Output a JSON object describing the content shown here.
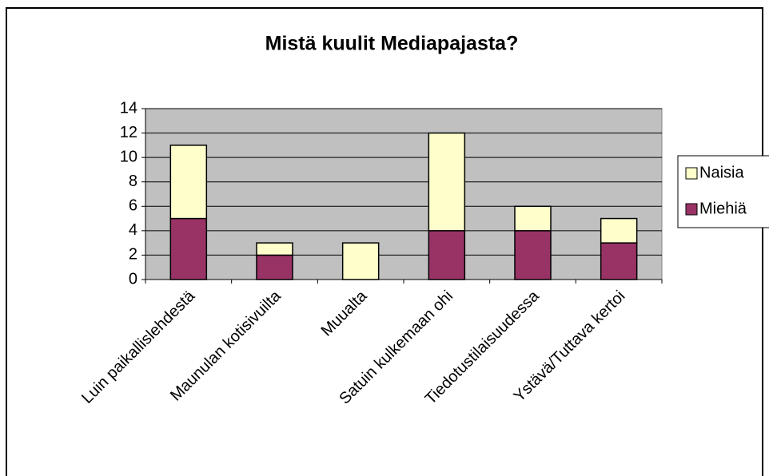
{
  "chart_data": {
    "type": "stacked_bar",
    "title": "Mistä kuulit Mediapajasta?",
    "categories": [
      "Luin paikallislehdestä",
      "Maunulan kotisivuilta",
      "Muualta",
      "Satuin kulkemaan ohi",
      "Tiedotustilaisuudessa",
      "Ystävä/Tuttava kertoi"
    ],
    "series": [
      {
        "name": "Miehiä",
        "color": "#993366",
        "values": [
          5,
          2,
          0,
          4,
          4,
          3
        ]
      },
      {
        "name": "Naisia",
        "color": "#ffffcc",
        "values": [
          6,
          1,
          3,
          8,
          2,
          2
        ]
      }
    ],
    "ylim": [
      0,
      14
    ],
    "yticks": [
      0,
      2,
      4,
      6,
      8,
      10,
      12,
      14
    ],
    "grid": true,
    "plot_background": "#c0c0c0",
    "legend": "right"
  }
}
